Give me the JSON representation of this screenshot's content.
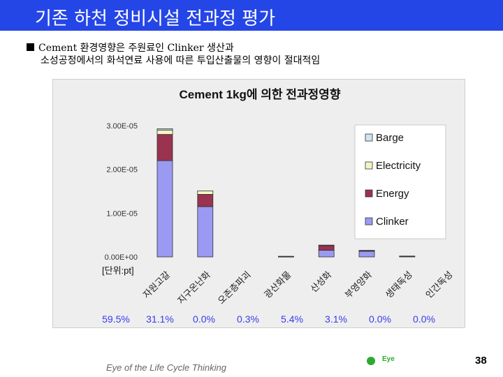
{
  "slide": {
    "title": "기존 하천 정비시설 전과정 평가",
    "bullet_line1": "Cement 환경영향은 주원료인 Clinker 생산과",
    "bullet_line2": "소성공정에서의 화석연료 사용에 따른 투입산출물의 영향이 절대적임",
    "footer": "Eye of the Life Cycle Thinking",
    "logo_text": "Eye",
    "page_number": "38"
  },
  "colors": {
    "title_bar": "#2546e6",
    "barge": "#cfe3f0",
    "electricity": "#f4f4c8",
    "energy": "#99334f",
    "clinker": "#9a9af2",
    "percent_text": "#3a3aee"
  },
  "chart_data": {
    "type": "bar",
    "stacked": true,
    "title": "Cement 1kg에 의한 전과정영향",
    "unit_label": "[단위:pt]",
    "categories": [
      "자원고갈",
      "지구온난화",
      "오존층파괴",
      "광산화물",
      "산성화",
      "부영양화",
      "생태독성",
      "인간독성"
    ],
    "percentages": [
      "59.5%",
      "31.1%",
      "0.0%",
      "0.3%",
      "5.4%",
      "3.1%",
      "0.0%",
      "0.0%"
    ],
    "series": [
      {
        "name": "Clinker",
        "values": [
          2.2e-05,
          1.15e-05,
          0,
          0,
          1.5e-06,
          1.3e-06,
          0,
          0
        ]
      },
      {
        "name": "Energy",
        "values": [
          6e-06,
          2.8e-06,
          0,
          1e-07,
          1.1e-06,
          1.5e-07,
          1.5e-07,
          0
        ]
      },
      {
        "name": "Electricity",
        "values": [
          1e-06,
          8e-07,
          0,
          5e-08,
          1e-07,
          5e-08,
          5e-08,
          0
        ]
      },
      {
        "name": "Barge",
        "values": [
          3e-07,
          0,
          0,
          0,
          0,
          0,
          0,
          0
        ]
      }
    ],
    "legend": [
      "Barge",
      "Electricity",
      "Energy",
      "Clinker"
    ],
    "y_ticks": [
      "0.00E+00",
      "1.00E-05",
      "2.00E-05",
      "3.00E-05"
    ],
    "ylim": [
      0,
      3e-05
    ],
    "legend_position": "right"
  }
}
